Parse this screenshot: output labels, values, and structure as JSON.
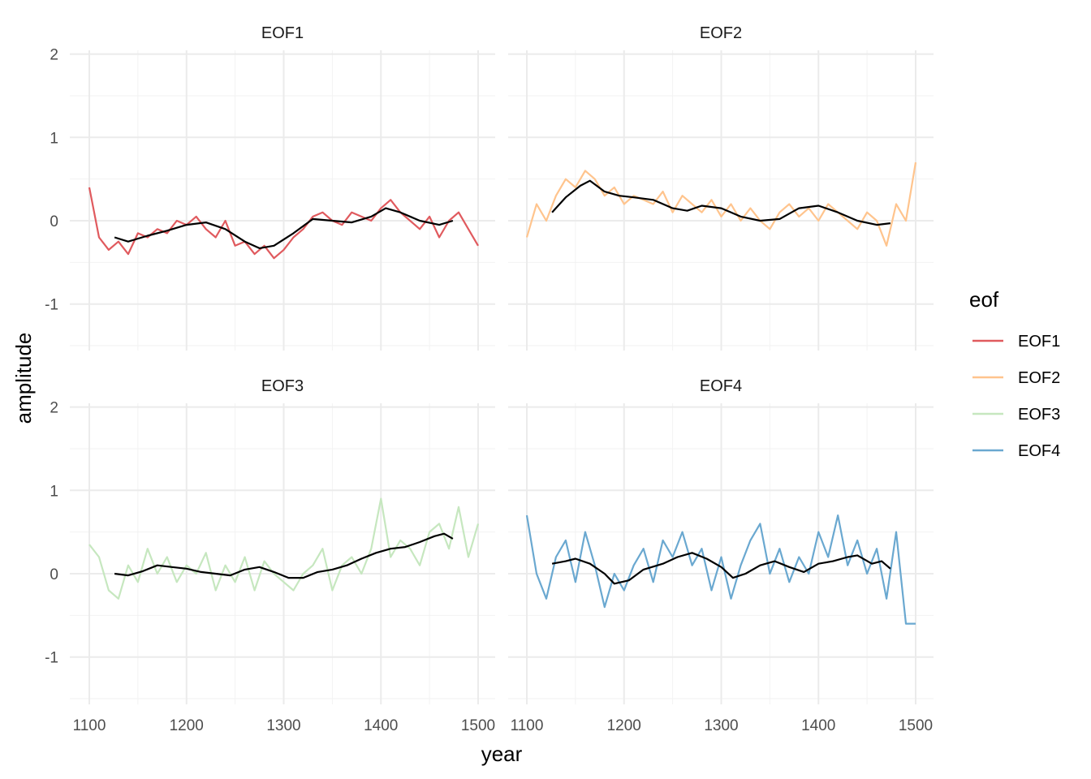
{
  "chart_data": {
    "type": "line",
    "facet_layout": "2x2",
    "xlabel": "year",
    "ylabel": "amplitude",
    "xlim": [
      1100,
      1500
    ],
    "ylim": [
      -1.5,
      2
    ],
    "x_ticks": [
      1100,
      1200,
      1300,
      1400,
      1500
    ],
    "y_ticks": [
      -1,
      0,
      1,
      2
    ],
    "grid": true,
    "legend_position": "right",
    "legend": {
      "title": "eof",
      "entries": [
        "EOF1",
        "EOF2",
        "EOF3",
        "EOF4"
      ]
    },
    "colors": {
      "EOF1": "#e05a5e",
      "EOF2": "#ffc48d",
      "EOF3": "#c6e7bf",
      "EOF4": "#6aa8d0",
      "smooth": "#000000"
    },
    "smooth_range": [
      1126,
      1474
    ],
    "panels": [
      {
        "name": "EOF1",
        "series": {
          "x": [
            1100,
            1110,
            1120,
            1130,
            1140,
            1150,
            1160,
            1170,
            1180,
            1190,
            1200,
            1210,
            1220,
            1230,
            1240,
            1250,
            1260,
            1270,
            1280,
            1290,
            1300,
            1310,
            1320,
            1330,
            1340,
            1350,
            1360,
            1370,
            1380,
            1390,
            1400,
            1410,
            1420,
            1430,
            1440,
            1450,
            1460,
            1470,
            1480,
            1490,
            1500
          ],
          "y": [
            0.4,
            -0.2,
            -0.35,
            -0.25,
            -0.4,
            -0.15,
            -0.2,
            -0.1,
            -0.15,
            0.0,
            -0.05,
            0.05,
            -0.1,
            -0.2,
            0.0,
            -0.3,
            -0.25,
            -0.4,
            -0.3,
            -0.45,
            -0.35,
            -0.2,
            -0.1,
            0.05,
            0.1,
            0.0,
            -0.05,
            0.1,
            0.05,
            0.0,
            0.15,
            0.25,
            0.1,
            0.0,
            -0.1,
            0.05,
            -0.2,
            0.0,
            0.1,
            -0.1,
            -0.3
          ]
        },
        "smooth": {
          "x": [
            1126,
            1140,
            1160,
            1180,
            1200,
            1220,
            1240,
            1260,
            1275,
            1290,
            1310,
            1330,
            1350,
            1370,
            1390,
            1405,
            1420,
            1440,
            1460,
            1474
          ],
          "y": [
            -0.2,
            -0.25,
            -0.18,
            -0.12,
            -0.05,
            -0.02,
            -0.1,
            -0.25,
            -0.33,
            -0.3,
            -0.15,
            0.02,
            0.0,
            -0.02,
            0.05,
            0.15,
            0.1,
            0.0,
            -0.05,
            0.0
          ]
        }
      },
      {
        "name": "EOF2",
        "series": {
          "x": [
            1100,
            1110,
            1120,
            1130,
            1140,
            1150,
            1160,
            1170,
            1180,
            1190,
            1200,
            1210,
            1220,
            1230,
            1240,
            1250,
            1260,
            1270,
            1280,
            1290,
            1300,
            1310,
            1320,
            1330,
            1340,
            1350,
            1360,
            1370,
            1380,
            1390,
            1400,
            1410,
            1420,
            1430,
            1440,
            1450,
            1460,
            1470,
            1480,
            1490,
            1500
          ],
          "y": [
            -0.2,
            0.2,
            0.0,
            0.3,
            0.5,
            0.4,
            0.6,
            0.5,
            0.3,
            0.4,
            0.2,
            0.3,
            0.25,
            0.2,
            0.35,
            0.1,
            0.3,
            0.2,
            0.1,
            0.25,
            0.05,
            0.2,
            0.0,
            0.15,
            0.0,
            -0.1,
            0.1,
            0.2,
            0.05,
            0.15,
            0.0,
            0.2,
            0.1,
            0.0,
            -0.1,
            0.1,
            0.0,
            -0.3,
            0.2,
            0.0,
            0.7
          ]
        },
        "smooth": {
          "x": [
            1126,
            1140,
            1155,
            1165,
            1180,
            1195,
            1210,
            1230,
            1250,
            1265,
            1280,
            1300,
            1320,
            1340,
            1360,
            1380,
            1400,
            1420,
            1440,
            1460,
            1474
          ],
          "y": [
            0.1,
            0.28,
            0.42,
            0.48,
            0.35,
            0.3,
            0.28,
            0.25,
            0.15,
            0.12,
            0.18,
            0.15,
            0.05,
            0.0,
            0.02,
            0.15,
            0.18,
            0.1,
            0.0,
            -0.05,
            -0.03
          ]
        }
      },
      {
        "name": "EOF3",
        "series": {
          "x": [
            1100,
            1110,
            1120,
            1130,
            1140,
            1150,
            1160,
            1170,
            1180,
            1190,
            1200,
            1210,
            1220,
            1230,
            1240,
            1250,
            1260,
            1270,
            1280,
            1290,
            1300,
            1310,
            1320,
            1330,
            1340,
            1350,
            1360,
            1370,
            1380,
            1390,
            1400,
            1410,
            1420,
            1430,
            1440,
            1450,
            1460,
            1470,
            1480,
            1490,
            1500
          ],
          "y": [
            0.35,
            0.2,
            -0.2,
            -0.3,
            0.1,
            -0.1,
            0.3,
            0.0,
            0.2,
            -0.1,
            0.1,
            0.0,
            0.25,
            -0.2,
            0.1,
            -0.1,
            0.2,
            -0.2,
            0.15,
            0.0,
            -0.1,
            -0.2,
            0.0,
            0.1,
            0.3,
            -0.2,
            0.1,
            0.2,
            0.0,
            0.3,
            0.9,
            0.2,
            0.4,
            0.3,
            0.1,
            0.5,
            0.6,
            0.3,
            0.8,
            0.2,
            0.6
          ]
        },
        "smooth": {
          "x": [
            1126,
            1140,
            1155,
            1170,
            1185,
            1200,
            1215,
            1230,
            1245,
            1260,
            1275,
            1290,
            1305,
            1320,
            1335,
            1350,
            1365,
            1380,
            1395,
            1410,
            1425,
            1440,
            1455,
            1465,
            1474
          ],
          "y": [
            0.0,
            -0.02,
            0.03,
            0.1,
            0.08,
            0.06,
            0.02,
            0.0,
            -0.02,
            0.05,
            0.08,
            0.02,
            -0.05,
            -0.05,
            0.02,
            0.05,
            0.1,
            0.18,
            0.25,
            0.3,
            0.32,
            0.38,
            0.45,
            0.48,
            0.42
          ]
        }
      },
      {
        "name": "EOF4",
        "series": {
          "x": [
            1100,
            1110,
            1120,
            1130,
            1140,
            1150,
            1160,
            1170,
            1180,
            1190,
            1200,
            1210,
            1220,
            1230,
            1240,
            1250,
            1260,
            1270,
            1280,
            1290,
            1300,
            1310,
            1320,
            1330,
            1340,
            1350,
            1360,
            1370,
            1380,
            1390,
            1400,
            1410,
            1420,
            1430,
            1440,
            1450,
            1460,
            1470,
            1480,
            1490,
            1500
          ],
          "y": [
            0.7,
            0.0,
            -0.3,
            0.2,
            0.4,
            -0.1,
            0.5,
            0.1,
            -0.4,
            0.0,
            -0.2,
            0.1,
            0.3,
            -0.1,
            0.4,
            0.2,
            0.5,
            0.1,
            0.3,
            -0.2,
            0.2,
            -0.3,
            0.1,
            0.4,
            0.6,
            0.0,
            0.3,
            -0.1,
            0.2,
            0.0,
            0.5,
            0.2,
            0.7,
            0.1,
            0.4,
            0.0,
            0.3,
            -0.3,
            0.5,
            -0.6,
            -0.6
          ]
        },
        "smooth": {
          "x": [
            1126,
            1140,
            1150,
            1165,
            1180,
            1190,
            1205,
            1220,
            1240,
            1255,
            1270,
            1285,
            1300,
            1312,
            1325,
            1340,
            1355,
            1370,
            1385,
            1400,
            1415,
            1430,
            1440,
            1455,
            1465,
            1474
          ],
          "y": [
            0.12,
            0.15,
            0.18,
            0.12,
            0.0,
            -0.12,
            -0.08,
            0.05,
            0.12,
            0.2,
            0.25,
            0.18,
            0.08,
            -0.05,
            0.0,
            0.1,
            0.15,
            0.08,
            0.02,
            0.12,
            0.15,
            0.2,
            0.22,
            0.12,
            0.15,
            0.06
          ]
        }
      }
    ]
  }
}
